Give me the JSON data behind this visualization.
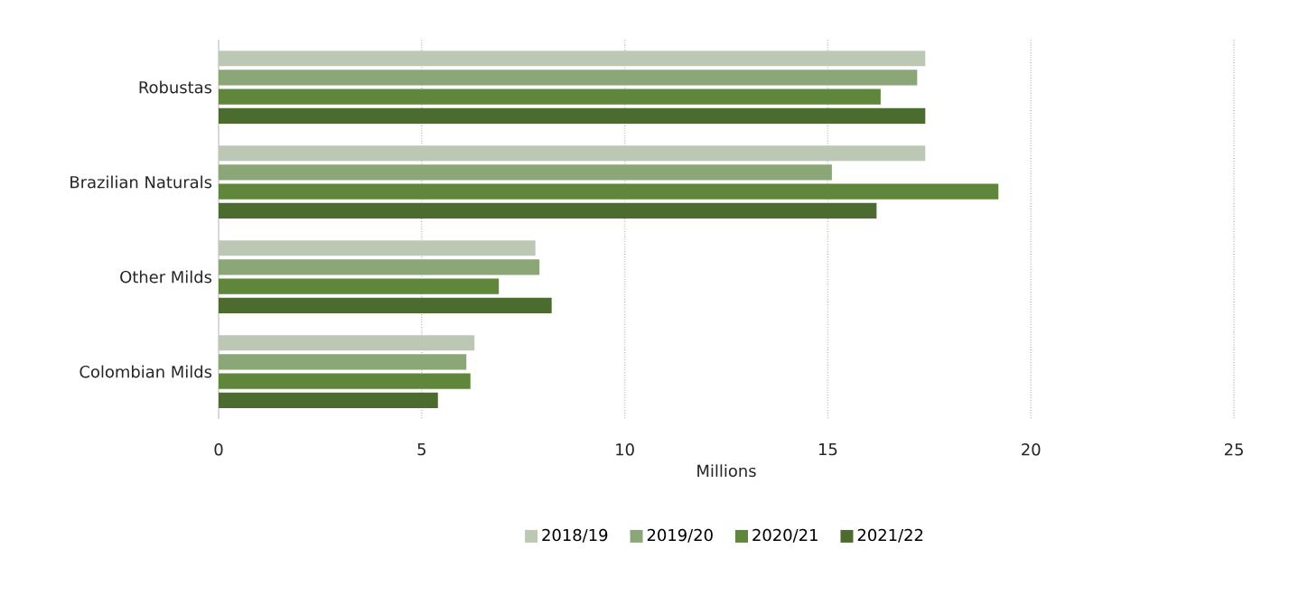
{
  "chart_data": {
    "type": "bar",
    "orientation": "horizontal",
    "xlabel": "Millions",
    "categories": [
      "Robustas",
      "Brazilian Naturals",
      "Other Milds",
      "Colombian Milds"
    ],
    "series": [
      {
        "name": "2018/19",
        "color": "#bcc8b4",
        "values": [
          17.4,
          17.4,
          7.8,
          6.3
        ]
      },
      {
        "name": "2019/20",
        "color": "#8ba677",
        "values": [
          17.2,
          15.1,
          7.9,
          6.1
        ]
      },
      {
        "name": "2020/21",
        "color": "#5f863a",
        "values": [
          16.3,
          19.2,
          6.9,
          6.2
        ]
      },
      {
        "name": "2021/22",
        "color": "#4c6b2e",
        "values": [
          17.4,
          16.2,
          8.2,
          5.4
        ]
      }
    ],
    "xlim": [
      0,
      25
    ],
    "xticks": [
      0,
      5,
      10,
      15,
      20,
      25
    ],
    "grid": "x",
    "legend": "bottom"
  }
}
